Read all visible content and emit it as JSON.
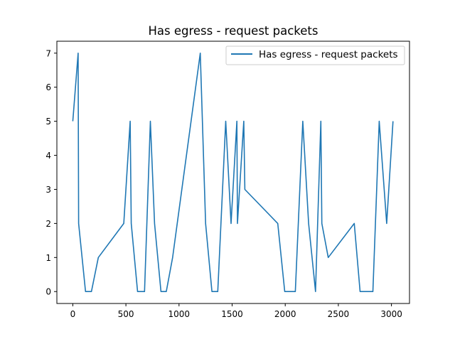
{
  "chart_data": {
    "type": "line",
    "title": "Has egress - request packets",
    "xlabel": "",
    "ylabel": "",
    "xlim": [
      -150,
      3170
    ],
    "ylim": [
      -0.35,
      7.35
    ],
    "x_ticks": [
      0,
      500,
      1000,
      1500,
      2000,
      2500,
      3000
    ],
    "y_ticks": [
      0,
      1,
      2,
      3,
      4,
      5,
      6,
      7
    ],
    "grid": false,
    "legend": {
      "position": "top-right",
      "entries": [
        "Has egress - request packets"
      ]
    },
    "series": [
      {
        "name": "Has egress - request packets",
        "color": "#1f77b4",
        "x": [
          0,
          50,
          55,
          120,
          175,
          240,
          480,
          540,
          550,
          610,
          675,
          730,
          770,
          830,
          880,
          940,
          1200,
          1250,
          1310,
          1365,
          1440,
          1490,
          1545,
          1550,
          1610,
          1620,
          1930,
          1995,
          2095,
          2165,
          2220,
          2285,
          2335,
          2345,
          2405,
          2650,
          2705,
          2825,
          2885,
          2955,
          3015
        ],
        "y": [
          5,
          7,
          2,
          0,
          0,
          1,
          2,
          5,
          2,
          0,
          0,
          5,
          2,
          0,
          0,
          1,
          7,
          2,
          0,
          0,
          5,
          2,
          5,
          2,
          5,
          3,
          2,
          0,
          0,
          5,
          2,
          0,
          5,
          2,
          1,
          2,
          0,
          0,
          5,
          2,
          5
        ]
      }
    ]
  }
}
